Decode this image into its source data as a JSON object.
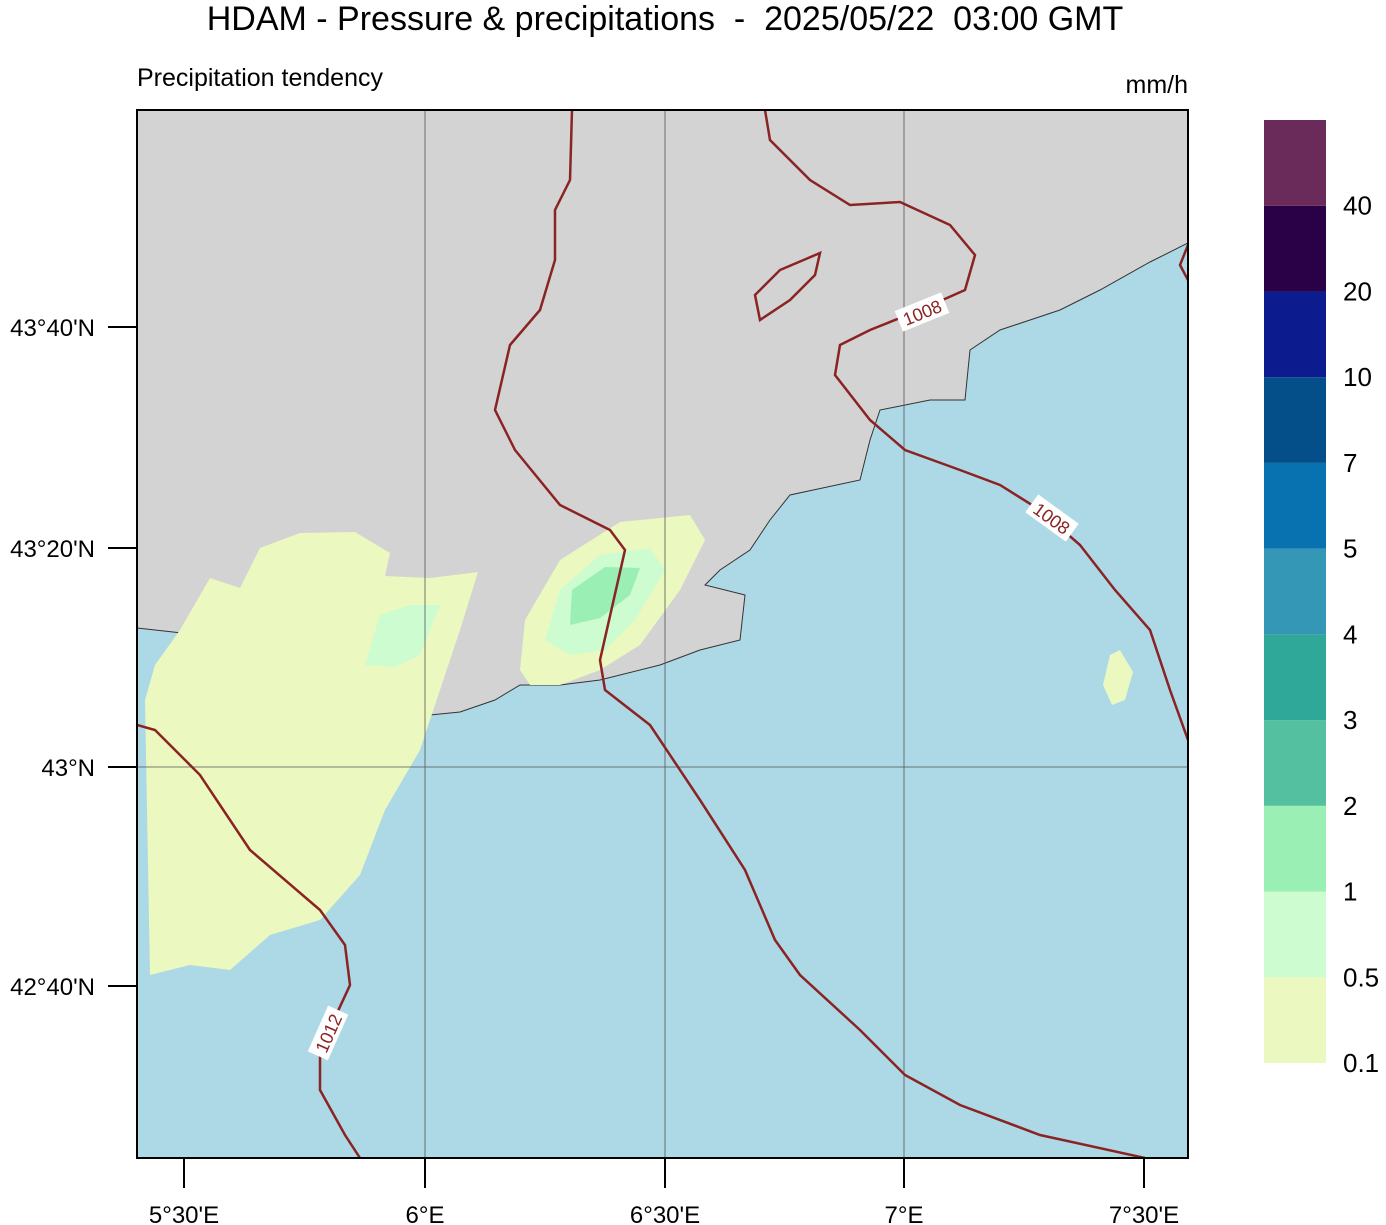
{
  "header": {
    "title": "HDAM - Pressure & precipitations  -  2025/05/22  03:00 GMT",
    "subtitle": "Precipitation tendency",
    "unit": "mm/h"
  },
  "map": {
    "latitude_labels": [
      "43°40'N",
      "43°20'N",
      "43°N",
      "42°40'N"
    ],
    "longitude_labels": [
      "5°30'E",
      "6°E",
      "6°30'E",
      "7°E",
      "7°30'E"
    ],
    "isobar_labels": [
      "1008",
      "1008",
      "1012"
    ]
  },
  "colorbar": {
    "levels": [
      0.1,
      0.5,
      1,
      2,
      3,
      4,
      5,
      7,
      10,
      20,
      40
    ],
    "colors": [
      "#ebf8bf",
      "#ccfcd0",
      "#99efb4",
      "#55c09f",
      "#30a899",
      "#3597b6",
      "#0872b1",
      "#044e89",
      "#0c1b8d",
      "#2a0047",
      "#6a2a5a"
    ]
  }
}
